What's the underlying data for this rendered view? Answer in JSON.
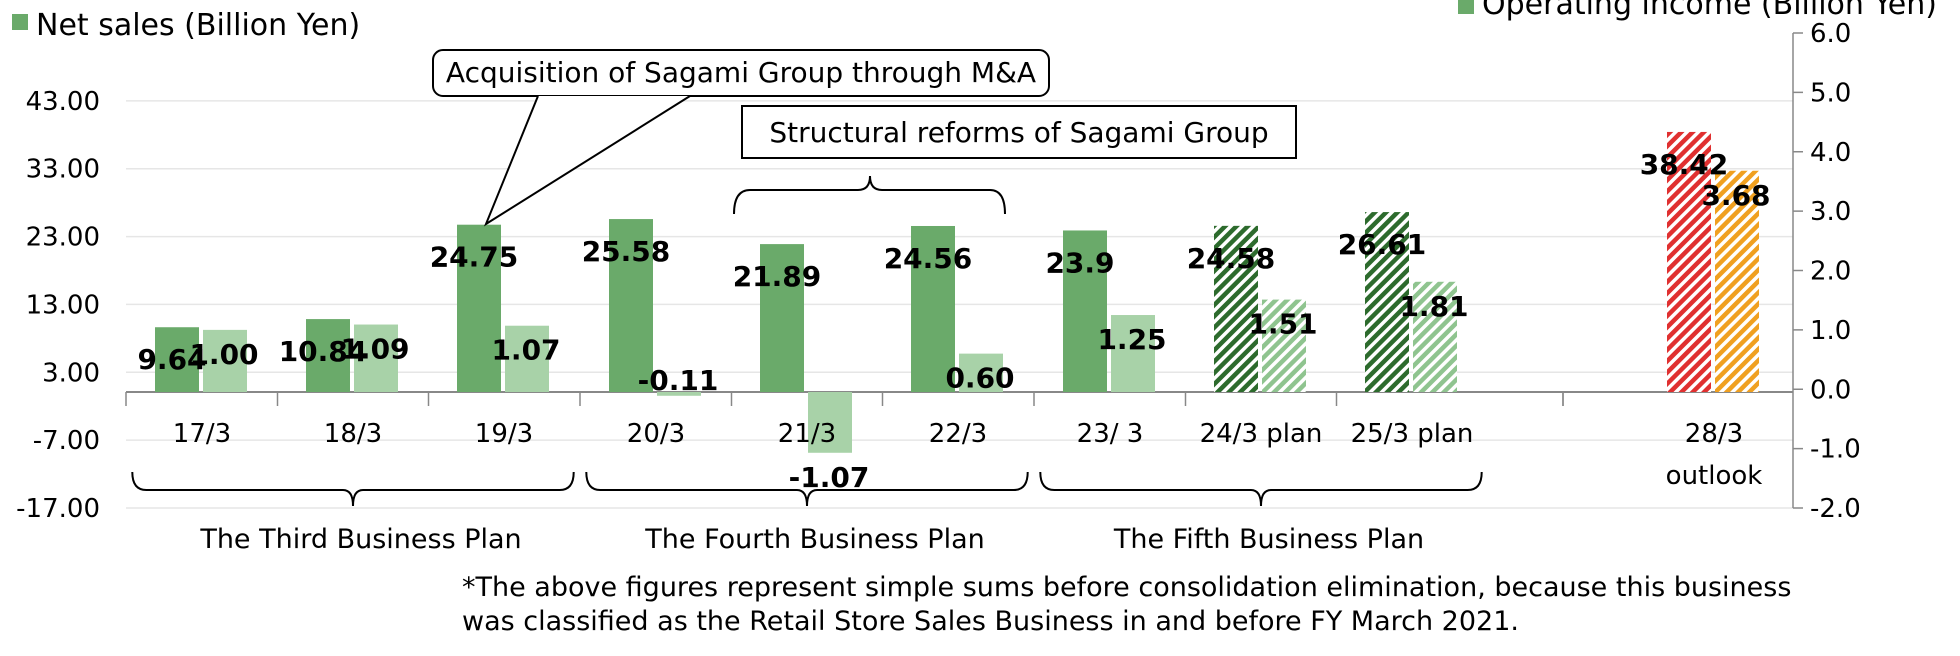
{
  "chart_data": {
    "type": "bar",
    "categories": [
      "17/3",
      "18/3",
      "19/3",
      "20/3",
      "21/3",
      "22/3",
      "23/ 3",
      "24/3 plan",
      "25/3 plan",
      "28/3"
    ],
    "category_sublabels": {
      "28/3": "outlook"
    },
    "series": [
      {
        "name": "Net sales (Billion Yen)",
        "axis": "left",
        "color": "#6aaa6a",
        "values": [
          9.64,
          10.84,
          24.75,
          25.58,
          21.89,
          24.56,
          23.9,
          24.58,
          26.61,
          38.42
        ],
        "labels": [
          "9.64",
          "10.84",
          "24.75",
          "25.58",
          "21.89",
          "24.56",
          "23.9",
          "24.58",
          "26.61",
          "38.42"
        ]
      },
      {
        "name": "Operating income (Billion Yen)",
        "axis": "right",
        "color": "#a8d2a8",
        "values": [
          1.0,
          1.09,
          1.07,
          -0.11,
          -1.07,
          0.6,
          1.25,
          1.51,
          1.81,
          3.68
        ],
        "labels": [
          "1.00",
          "1.09",
          "1.07",
          "-0.11",
          "-1.07",
          "0.60",
          "1.25",
          "1.51",
          "1.81",
          "3.68"
        ]
      }
    ],
    "y_left": {
      "ticks": [
        "43.00",
        "33.00",
        "23.00",
        "13.00",
        "3.00",
        "-7.00",
        "-17.00"
      ],
      "ylim": [
        -17,
        53
      ]
    },
    "y_right": {
      "ticks": [
        "6.0",
        "5.0",
        "4.0",
        "3.0",
        "2.0",
        "1.0",
        "0.0",
        "-1.0",
        "-2.0"
      ],
      "ylim": [
        -2,
        6
      ]
    },
    "hatched_categories": [
      "24/3 plan",
      "25/3 plan"
    ],
    "outlook_category": "28/3",
    "outlook_colors": {
      "net_sales": "#e03030",
      "operating_income": "#f0a020"
    },
    "annotations": [
      {
        "text": "Acquisition of Sagami Group through M&A",
        "points_to": "19/3"
      },
      {
        "text": "Structural reforms of Sagami Group",
        "spans": [
          "21/3",
          "22/3"
        ]
      }
    ],
    "business_plans": [
      {
        "label": "The Third Business Plan",
        "categories": [
          "17/3",
          "18/3",
          "19/3"
        ]
      },
      {
        "label": "The Fourth Business Plan",
        "categories": [
          "20/3",
          "21/3",
          "22/3"
        ]
      },
      {
        "label": "The Fifth Business Plan",
        "categories": [
          "23/ 3",
          "24/3 plan",
          "25/3 plan"
        ]
      }
    ],
    "grid": true,
    "legend_placement": "top"
  },
  "footnote": [
    "*The above figures represent simple sums before consolidation elimination, because this business",
    "was classified as the Retail Store Sales Business in and before FY March 2021."
  ]
}
